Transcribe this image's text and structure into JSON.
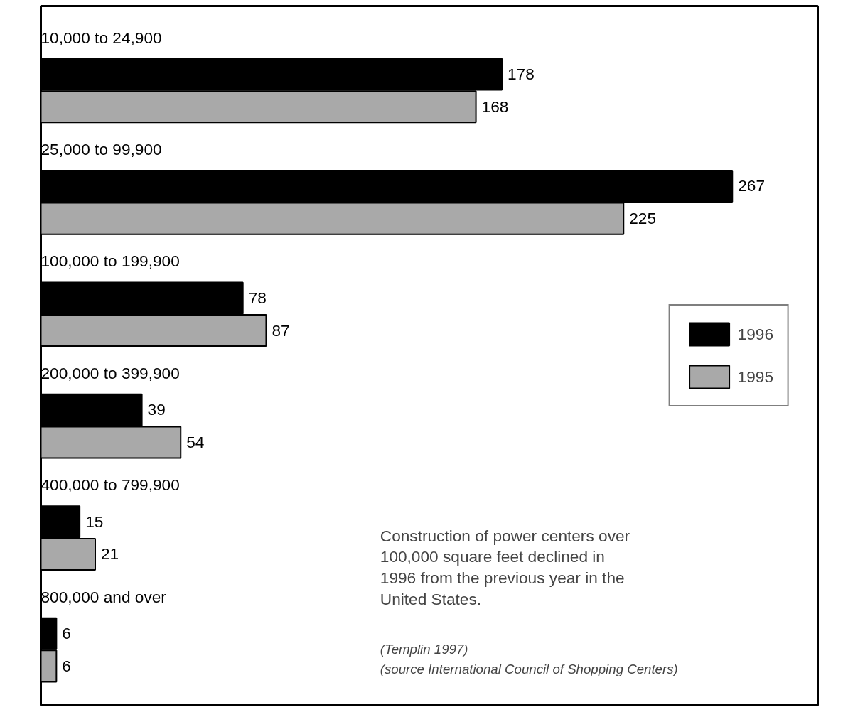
{
  "chart_data": {
    "type": "bar",
    "orientation": "horizontal",
    "categories": [
      "10,000 to 24,900",
      "25,000 to 99,900",
      "100,000 to 199,900",
      "200,000 to 399,900",
      "400,000 to 799,900",
      "800,000 and over"
    ],
    "series": [
      {
        "name": "1996",
        "color": "#000000",
        "values": [
          178,
          267,
          78,
          39,
          15,
          6
        ]
      },
      {
        "name": "1995",
        "color": "#a9a9a9",
        "values": [
          168,
          225,
          87,
          54,
          21,
          6
        ]
      }
    ],
    "xlim": [
      0,
      300
    ],
    "data_labels": true,
    "legend": "right",
    "grid": false,
    "annotations": [
      "Construction of power centers over 100,000 square feet declined in 1996 from the previous year in the United States.",
      "(Templin 1997)",
      "(source International Council of Shopping Centers)"
    ]
  }
}
